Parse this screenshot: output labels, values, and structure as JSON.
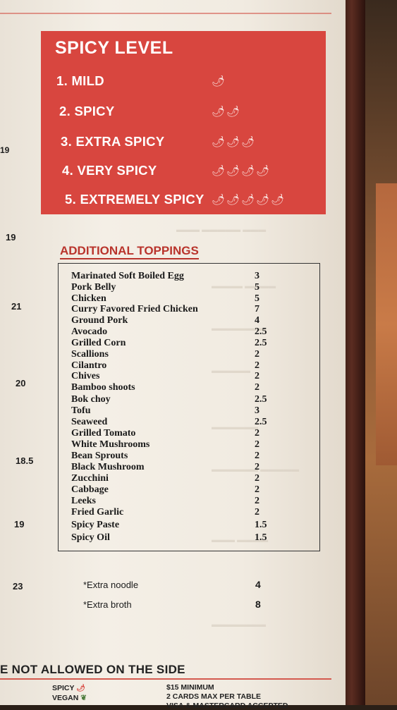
{
  "spicy_level": {
    "title": "SPICY LEVEL",
    "levels": [
      {
        "label": "1. MILD",
        "peppers": "🌶"
      },
      {
        "label": "2. SPICY",
        "peppers": "🌶🌶"
      },
      {
        "label": "3. EXTRA SPICY",
        "peppers": "🌶🌶🌶"
      },
      {
        "label": "4. VERY SPICY",
        "peppers": "🌶🌶🌶🌶"
      },
      {
        "label": "5. EXTREMELY SPICY",
        "peppers": "🌶🌶🌶🌶🌶"
      }
    ]
  },
  "left_prices": [
    "19",
    "19",
    "21",
    "20",
    "18.5",
    "19",
    "23"
  ],
  "toppings": {
    "title": "ADDITIONAL TOPPINGS",
    "items": [
      {
        "name": "Marinated  Soft Boiled Egg",
        "price": "3"
      },
      {
        "name": "Pork Belly",
        "price": "5"
      },
      {
        "name": "Chicken",
        "price": "5"
      },
      {
        "name": "Curry Favored Fried Chicken",
        "price": "7"
      },
      {
        "name": "Ground Pork",
        "price": "4"
      },
      {
        "name": "Avocado",
        "price": "2.5"
      },
      {
        "name": "Grilled Corn",
        "price": "2.5"
      },
      {
        "name": "Scallions",
        "price": "2"
      },
      {
        "name": "Cilantro",
        "price": "2"
      },
      {
        "name": "Chives",
        "price": "2"
      },
      {
        "name": "Bamboo shoots",
        "price": "2"
      },
      {
        "name": "Bok choy",
        "price": "2.5"
      },
      {
        "name": "Tofu",
        "price": "3"
      },
      {
        "name": "Seaweed",
        "price": "2.5"
      },
      {
        "name": "Grilled Tomato",
        "price": "2"
      },
      {
        "name": "White Mushrooms",
        "price": "2"
      },
      {
        "name": "Bean Sprouts",
        "price": "2"
      },
      {
        "name": "Black Mushroom",
        "price": "2"
      },
      {
        "name": "Zucchini",
        "price": "2"
      },
      {
        "name": "Cabbage",
        "price": "2"
      },
      {
        "name": "Leeks",
        "price": "2"
      },
      {
        "name": "Fried Garlic",
        "price": "2"
      },
      {
        "name": "Spicy Paste",
        "price": "1.5"
      },
      {
        "name": "Spicy Oil",
        "price": "1.5"
      }
    ]
  },
  "extras": [
    {
      "name": "*Extra noodle",
      "price": "4"
    },
    {
      "name": "*Extra broth",
      "price": "8"
    }
  ],
  "notice": "E NOT ALLOWED ON THE SIDE",
  "footer": {
    "spicy_label": "SPICY",
    "vegan_label": "VEGAN",
    "minimum": "$15 MINIMUM",
    "cards": "2 CARDS MAX PER TABLE",
    "accepted": "VISA & MASTERCARD ACCEPTED"
  },
  "colors": {
    "accent_red": "#d8463f",
    "paper": "#f1ebe1"
  }
}
